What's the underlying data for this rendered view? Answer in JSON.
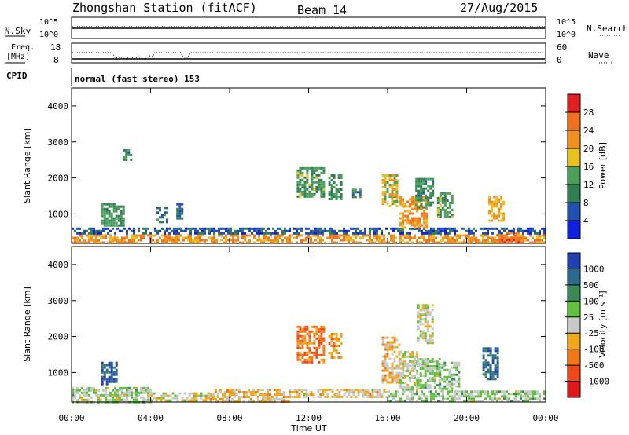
{
  "header": {
    "station": "Zhongshan Station (fitACF)",
    "beam": "Beam 14",
    "date": "27/Aug/2015"
  },
  "strips": {
    "nsky": {
      "label": "N.Sky",
      "left_ticks": [
        "10^5",
        "10^0"
      ],
      "right_label": "N.Search",
      "right_ticks": [
        "10^5",
        "10^0"
      ]
    },
    "freq": {
      "label_top": "Freq.",
      "label_unit": "[MHz]",
      "left_ticks": [
        "18",
        "8"
      ],
      "right_label": "Nave",
      "right_ticks": [
        "60",
        "0"
      ]
    },
    "cpid": {
      "label": "CPID",
      "value": "normal (fast stereo) 153"
    }
  },
  "colors": {
    "power": [
      "#1020e0",
      "#2050b0",
      "#2f7f52",
      "#4aa05a",
      "#e8c020",
      "#f09020",
      "#f07020",
      "#e02020"
    ],
    "velocity": [
      "#e01818",
      "#f04818",
      "#f07818",
      "#f0a818",
      "#c8c8c8",
      "#60c040",
      "#3a8a58",
      "#2a6a8a",
      "#2040b0"
    ]
  },
  "chart_data": [
    {
      "type": "heatmap",
      "name": "power",
      "ylabel": "Slant Range [km]",
      "y_ticks": [
        "1000",
        "2000",
        "3000",
        "4000"
      ],
      "ylim": [
        180,
        4500
      ],
      "xlim": [
        0,
        24
      ],
      "x_ticks": [
        "00:00",
        "04:00",
        "08:00",
        "12:00",
        "16:00",
        "20:00",
        "00:00"
      ],
      "colorbar": {
        "label": "Power [dB]",
        "ticks": [
          "4",
          "8",
          "12",
          "16",
          "20",
          "24",
          "28"
        ],
        "range": [
          0,
          32
        ]
      },
      "regions": [
        {
          "t": [
            0.0,
            23.9
          ],
          "r": [
            200,
            430
          ],
          "val": 22
        },
        {
          "t": [
            0.0,
            23.9
          ],
          "r": [
            430,
            620
          ],
          "val": 6
        },
        {
          "t": [
            1.5,
            2.6
          ],
          "r": [
            700,
            1300
          ],
          "val": 12
        },
        {
          "t": [
            2.6,
            3.0
          ],
          "r": [
            2500,
            2800
          ],
          "val": 10
        },
        {
          "t": [
            4.3,
            4.8
          ],
          "r": [
            800,
            1200
          ],
          "val": 9
        },
        {
          "t": [
            5.3,
            5.6
          ],
          "r": [
            900,
            1300
          ],
          "val": 8
        },
        {
          "t": [
            11.4,
            12.8
          ],
          "r": [
            1500,
            2300
          ],
          "val": 13
        },
        {
          "t": [
            13.0,
            13.6
          ],
          "r": [
            1400,
            2100
          ],
          "val": 12
        },
        {
          "t": [
            14.2,
            14.6
          ],
          "r": [
            1500,
            1700
          ],
          "val": 10
        },
        {
          "t": [
            15.7,
            16.5
          ],
          "r": [
            1200,
            2100
          ],
          "val": 18
        },
        {
          "t": [
            16.6,
            18.0
          ],
          "r": [
            600,
            1500
          ],
          "val": 22
        },
        {
          "t": [
            17.4,
            18.3
          ],
          "r": [
            1200,
            2000
          ],
          "val": 11
        },
        {
          "t": [
            18.5,
            19.3
          ],
          "r": [
            900,
            1600
          ],
          "val": 13
        },
        {
          "t": [
            21.1,
            21.9
          ],
          "r": [
            800,
            1500
          ],
          "val": 20
        },
        {
          "t": [
            21.5,
            22.6
          ],
          "r": [
            200,
            500
          ],
          "val": 26
        }
      ]
    },
    {
      "type": "heatmap",
      "name": "velocity",
      "ylabel": "Slant Range [km]",
      "y_ticks": [
        "1000",
        "2000",
        "3000",
        "4000"
      ],
      "ylim": [
        180,
        4500
      ],
      "xlim": [
        0,
        24
      ],
      "x_ticks": [
        "00:00",
        "04:00",
        "08:00",
        "12:00",
        "16:00",
        "20:00",
        "00:00"
      ],
      "xlabel": "Time UT",
      "colorbar": {
        "label": "Velocity [m s⁻¹]",
        "ticks": [
          "-1000",
          "-500",
          "-100",
          "-25",
          "25",
          "100",
          "500",
          "1000"
        ],
        "range": [
          -1200,
          1200
        ]
      },
      "regions": [
        {
          "t": [
            0.0,
            4.0
          ],
          "r": [
            200,
            600
          ],
          "val": 120
        },
        {
          "t": [
            1.5,
            2.3
          ],
          "r": [
            700,
            1300
          ],
          "val": 900
        },
        {
          "t": [
            4.0,
            7.0
          ],
          "r": [
            200,
            450
          ],
          "val": -80
        },
        {
          "t": [
            7.0,
            11.0
          ],
          "r": [
            200,
            550
          ],
          "val": -200
        },
        {
          "t": [
            11.0,
            16.0
          ],
          "r": [
            300,
            550
          ],
          "val": -150
        },
        {
          "t": [
            11.4,
            12.8
          ],
          "r": [
            1300,
            2300
          ],
          "val": -600
        },
        {
          "t": [
            13.0,
            13.6
          ],
          "r": [
            1400,
            2100
          ],
          "val": -400
        },
        {
          "t": [
            15.7,
            16.6
          ],
          "r": [
            700,
            2000
          ],
          "val": -200
        },
        {
          "t": [
            16.6,
            17.5
          ],
          "r": [
            500,
            1600
          ],
          "val": 60
        },
        {
          "t": [
            17.5,
            18.3
          ],
          "r": [
            1800,
            2900
          ],
          "val": 0
        },
        {
          "t": [
            17.5,
            18.6
          ],
          "r": [
            600,
            1400
          ],
          "val": 150
        },
        {
          "t": [
            18.6,
            19.6
          ],
          "r": [
            500,
            1300
          ],
          "val": 200
        },
        {
          "t": [
            16.0,
            24.0
          ],
          "r": [
            200,
            500
          ],
          "val": 150
        },
        {
          "t": [
            20.8,
            21.6
          ],
          "r": [
            800,
            1700
          ],
          "val": 800
        }
      ]
    }
  ]
}
